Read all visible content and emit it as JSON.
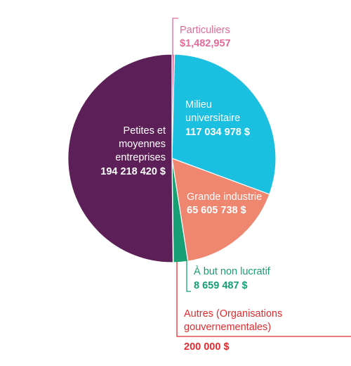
{
  "chart_data": {
    "type": "pie",
    "slices": [
      {
        "key": "particuliers",
        "label": "Particuliers",
        "value_label": "$1,482,957",
        "value": 1482957,
        "color": "#e46a99"
      },
      {
        "key": "milieu",
        "label": "Milieu universitaire",
        "label_lines": [
          "Milieu",
          "universitaire"
        ],
        "value_label": "117 034 978 $",
        "value": 117034978,
        "color": "#1bbfe0"
      },
      {
        "key": "grande",
        "label": "Grande industrie",
        "value_label": "65 605 738 $",
        "value": 65605738,
        "color": "#ef8770"
      },
      {
        "key": "obnl",
        "label": "À but non lucratif",
        "value_label": "8 659 487 $",
        "value": 8659487,
        "color": "#17a074"
      },
      {
        "key": "autres",
        "label": "Autres (Organisations gouvernementales)",
        "label_lines": [
          "Autres (Organisations",
          "gouvernementales)"
        ],
        "value_label": "200 000 $",
        "value": 200000,
        "color": "#e42b2f"
      },
      {
        "key": "pme",
        "label": "Petites et moyennes entreprises",
        "label_lines": [
          "Petites et",
          "moyennes",
          "entreprises"
        ],
        "value_label": "194 218 420 $",
        "value": 194218420,
        "color": "#5c1f58"
      }
    ]
  }
}
